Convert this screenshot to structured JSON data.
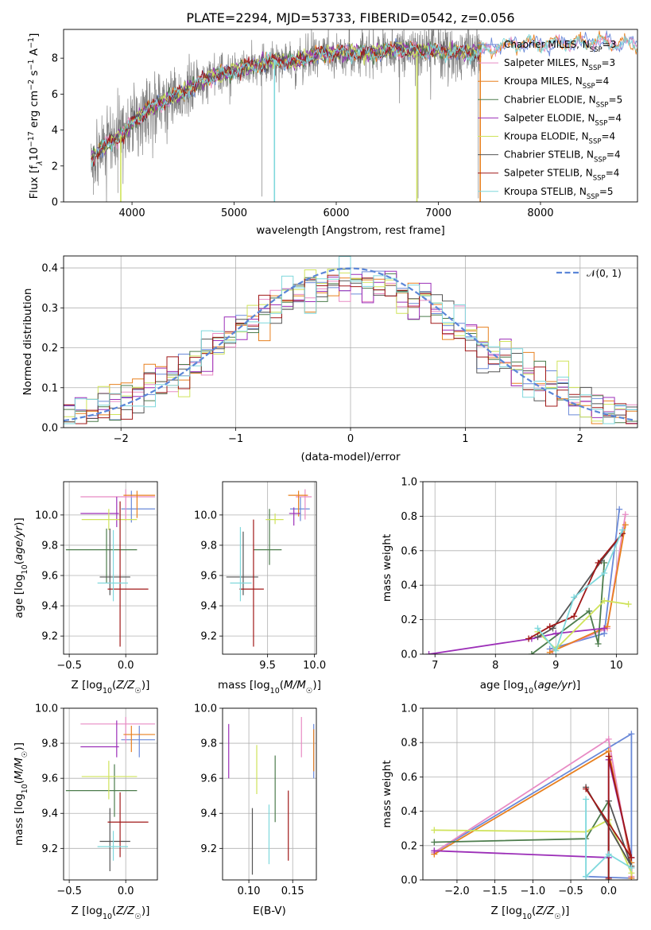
{
  "colors": {
    "Chabrier MILES": "#6a89d8",
    "Salpeter MILES": "#e88bc4",
    "Kroupa MILES": "#e8801f",
    "Chabrier ELODIE": "#4c7c4c",
    "Salpeter ELODIE": "#9c2fb8",
    "Kroupa ELODIE": "#cfe35a",
    "Chabrier STELIB": "#555555",
    "Salpeter STELIB": "#a01818",
    "Kroupa STELIB": "#7fd8dc",
    "data": "#808080",
    "normal": "#5b86d8",
    "grid": "#b0b0b0"
  },
  "chart_data": [
    {
      "type": "line",
      "title": "PLATE=2294, MJD=53733, FIBERID=0542, z=0.056",
      "xlabel": "wavelength [Angstrom, rest frame]",
      "ylabel": "Flux [f$_\\lambda$10$^{-17}$ erg cm$^{-2}$ s$^{-1}$ A$^{-1}$]",
      "ylabel_parts": {
        "a": "Flux [f",
        "b": "λ",
        "c": "10",
        "d": "−17",
        "e": " erg cm",
        "f": "−2",
        "g": " s",
        "h": "−1",
        "i": " A",
        "j": "−1",
        "k": "]"
      },
      "xlim": [
        3330,
        8950
      ],
      "ylim": [
        0,
        9.6
      ],
      "xticks": [
        "4000",
        "5000",
        "6000",
        "7000",
        "8000"
      ],
      "yticks": [
        "0",
        "2",
        "4",
        "6",
        "8"
      ],
      "legend": [
        {
          "name": "Chabrier MILES",
          "n": "3"
        },
        {
          "name": "Salpeter MILES",
          "n": "3"
        },
        {
          "name": "Kroupa MILES",
          "n": "4"
        },
        {
          "name": "Chabrier ELODIE",
          "n": "5"
        },
        {
          "name": "Salpeter ELODIE",
          "n": "4"
        },
        {
          "name": "Kroupa ELODIE",
          "n": "4"
        },
        {
          "name": "Chabrier STELIB",
          "n": "4"
        },
        {
          "name": "Salpeter STELIB",
          "n": "4"
        },
        {
          "name": "Kroupa STELIB",
          "n": "5"
        }
      ],
      "legend_n_label": "N",
      "legend_n_sub": "SSP",
      "continuum_x": [
        3600,
        3700,
        3800,
        3900,
        4000,
        4100,
        4200,
        4300,
        4400,
        4500,
        4600,
        4800,
        5000,
        5200,
        5400,
        5600,
        5800,
        6000,
        6200,
        6400,
        6600,
        6800,
        7000,
        7200,
        7400,
        7600,
        7800,
        8000,
        8200,
        8400,
        8600,
        8800
      ],
      "continuum_y": [
        2.4,
        3.0,
        3.4,
        3.7,
        4.4,
        4.9,
        5.3,
        5.5,
        5.9,
        6.1,
        6.4,
        7.0,
        7.3,
        7.6,
        7.9,
        7.8,
        8.2,
        8.3,
        8.3,
        8.3,
        8.5,
        8.4,
        8.4,
        8.3,
        8.3,
        8.7,
        8.8,
        8.8,
        8.8,
        8.9,
        8.9,
        8.8
      ]
    },
    {
      "type": "bar",
      "title": "",
      "xlabel": "(data-model)/error",
      "ylabel": "Normed distribution",
      "xlim": [
        -2.5,
        2.5
      ],
      "ylim": [
        0,
        0.43
      ],
      "xticks": [
        "−2",
        "−1",
        "0",
        "1",
        "2"
      ],
      "yticks": [
        "0.0",
        "0.1",
        "0.2",
        "0.3",
        "0.4"
      ],
      "legend_label": "𝒩(0, 1)",
      "bin_width": 0.1,
      "reference": "normal"
    },
    {
      "type": "scatter",
      "xlabel": "Z [log10(Z/Z☉)]",
      "ylabel": "age  [log10(age/yr)]",
      "xlim": [
        -0.55,
        0.28
      ],
      "ylim": [
        9.08,
        10.22
      ],
      "xticks": [
        "−0.5",
        "0.0"
      ],
      "yticks": [
        "9.2",
        "9.4",
        "9.6",
        "9.8",
        "10.0"
      ],
      "points": [
        {
          "s": "Chabrier MILES",
          "x": 0.05,
          "y": 10.04,
          "xe": [
            -0.04,
            0.26
          ],
          "ye": [
            9.95,
            10.16
          ]
        },
        {
          "s": "Salpeter MILES",
          "x": 0.0,
          "y": 10.12,
          "xe": [
            -0.4,
            0.26
          ],
          "ye": [
            9.96,
            10.17
          ]
        },
        {
          "s": "Kroupa MILES",
          "x": 0.1,
          "y": 10.13,
          "xe": [
            -0.02,
            0.26
          ],
          "ye": [
            9.98,
            10.16
          ]
        },
        {
          "s": "Chabrier ELODIE",
          "x": -0.17,
          "y": 9.77,
          "xe": [
            -0.53,
            0.1
          ],
          "ye": [
            9.55,
            9.91
          ]
        },
        {
          "s": "Salpeter ELODIE",
          "x": -0.08,
          "y": 10.01,
          "xe": [
            -0.4,
            -0.06
          ],
          "ye": [
            9.92,
            10.12
          ]
        },
        {
          "s": "Kroupa ELODIE",
          "x": -0.15,
          "y": 9.97,
          "xe": [
            -0.39,
            0.1
          ],
          "ye": [
            9.9,
            10.04
          ]
        },
        {
          "s": "Chabrier STELIB",
          "x": -0.14,
          "y": 9.59,
          "xe": [
            -0.23,
            0.04
          ],
          "ye": [
            9.47,
            9.91
          ]
        },
        {
          "s": "Salpeter STELIB",
          "x": -0.05,
          "y": 9.51,
          "xe": [
            -0.16,
            0.2
          ],
          "ye": [
            9.13,
            10.09
          ]
        },
        {
          "s": "Kroupa STELIB",
          "x": -0.11,
          "y": 9.55,
          "xe": [
            -0.25,
            0.02
          ],
          "ye": [
            9.43,
            9.9
          ]
        }
      ]
    },
    {
      "type": "scatter",
      "xlabel": "mass [log10(M/M☉)]",
      "ylabel": "",
      "xlim": [
        9.02,
        10.02
      ],
      "ylim": [
        9.08,
        10.22
      ],
      "xticks": [
        "9.5",
        "10.0"
      ],
      "yticks": [
        "9.2",
        "9.4",
        "9.6",
        "9.8",
        "10.0"
      ],
      "points": [
        {
          "s": "Chabrier MILES",
          "x": 9.85,
          "y": 10.04,
          "xe": [
            9.74,
            9.95
          ],
          "ye": [
            9.96,
            10.12
          ]
        },
        {
          "s": "Salpeter MILES",
          "x": 9.9,
          "y": 10.12,
          "xe": [
            9.8,
            9.97
          ],
          "ye": [
            9.97,
            10.17
          ]
        },
        {
          "s": "Kroupa MILES",
          "x": 9.83,
          "y": 10.13,
          "xe": [
            9.72,
            9.93
          ],
          "ye": [
            9.99,
            10.16
          ]
        },
        {
          "s": "Chabrier ELODIE",
          "x": 9.52,
          "y": 9.77,
          "xe": [
            9.35,
            9.65
          ],
          "ye": [
            9.67,
            10.04
          ]
        },
        {
          "s": "Salpeter ELODIE",
          "x": 9.78,
          "y": 10.01,
          "xe": [
            9.73,
            9.85
          ],
          "ye": [
            9.93,
            10.05
          ]
        },
        {
          "s": "Kroupa ELODIE",
          "x": 9.58,
          "y": 9.97,
          "xe": [
            9.48,
            9.67
          ],
          "ye": [
            9.94,
            10.01
          ]
        },
        {
          "s": "Chabrier STELIB",
          "x": 9.24,
          "y": 9.59,
          "xe": [
            9.06,
            9.4
          ],
          "ye": [
            9.47,
            9.89
          ]
        },
        {
          "s": "Salpeter STELIB",
          "x": 9.35,
          "y": 9.51,
          "xe": [
            9.2,
            9.46
          ],
          "ye": [
            9.13,
            9.97
          ]
        },
        {
          "s": "Kroupa STELIB",
          "x": 9.21,
          "y": 9.55,
          "xe": [
            9.1,
            9.33
          ],
          "ye": [
            9.43,
            9.92
          ]
        }
      ]
    },
    {
      "type": "line",
      "xlabel": "age  [log10(age/yr)]",
      "ylabel": "mass weight",
      "xlim": [
        6.8,
        10.35
      ],
      "ylim": [
        0,
        1.0
      ],
      "xticks": [
        "7",
        "8",
        "9",
        "10"
      ],
      "yticks": [
        "0.0",
        "0.2",
        "0.4",
        "0.6",
        "0.8",
        "1.0"
      ],
      "series": [
        {
          "s": "Chabrier MILES",
          "x": [
            8.9,
            9.8,
            10.05
          ],
          "y": [
            0.03,
            0.12,
            0.84
          ]
        },
        {
          "s": "Salpeter MILES",
          "x": [
            8.95,
            9.85,
            10.15
          ],
          "y": [
            0.02,
            0.15,
            0.81
          ]
        },
        {
          "s": "Kroupa MILES",
          "x": [
            8.9,
            9.85,
            10.15
          ],
          "y": [
            0.01,
            0.16,
            0.75
          ]
        },
        {
          "s": "Chabrier ELODIE",
          "x": [
            8.6,
            9.55,
            9.7,
            9.8
          ],
          "y": [
            0.0,
            0.25,
            0.06,
            0.53
          ]
        },
        {
          "s": "Salpeter ELODIE",
          "x": [
            6.9,
            8.6,
            9.0,
            9.8
          ],
          "y": [
            0.0,
            0.09,
            0.12,
            0.15
          ]
        },
        {
          "s": "Kroupa ELODIE",
          "x": [
            8.7,
            9.0,
            9.8,
            10.2
          ],
          "y": [
            0.13,
            0.03,
            0.31,
            0.29
          ]
        },
        {
          "s": "Chabrier STELIB",
          "x": [
            8.7,
            8.95,
            9.75,
            10.1
          ],
          "y": [
            0.1,
            0.15,
            0.54,
            0.7
          ]
        },
        {
          "s": "Salpeter STELIB",
          "x": [
            8.55,
            8.9,
            9.3,
            9.7,
            10.1
          ],
          "y": [
            0.09,
            0.16,
            0.22,
            0.53,
            0.7
          ]
        },
        {
          "s": "Kroupa STELIB",
          "x": [
            8.7,
            9.0,
            9.3,
            9.8,
            10.1
          ],
          "y": [
            0.15,
            0.02,
            0.33,
            0.47,
            0.72
          ]
        }
      ]
    },
    {
      "type": "scatter",
      "xlabel": "Z [log10(Z/Z☉)]",
      "ylabel": "mass [log10(M/M☉)]",
      "xlim": [
        -0.55,
        0.28
      ],
      "ylim": [
        9.02,
        10.0
      ],
      "xticks": [
        "−0.5",
        "0.0"
      ],
      "yticks": [
        "9.2",
        "9.4",
        "9.6",
        "9.8",
        "10.0"
      ],
      "points": [
        {
          "s": "Chabrier MILES",
          "x": 0.12,
          "y": 9.82,
          "xe": [
            -0.04,
            0.26
          ],
          "ye": [
            9.72,
            9.9
          ]
        },
        {
          "s": "Salpeter MILES",
          "x": 0.0,
          "y": 9.91,
          "xe": [
            -0.4,
            0.26
          ],
          "ye": [
            9.8,
            9.95
          ]
        },
        {
          "s": "Kroupa MILES",
          "x": 0.05,
          "y": 9.85,
          "xe": [
            -0.02,
            0.26
          ],
          "ye": [
            9.75,
            9.9
          ]
        },
        {
          "s": "Chabrier ELODIE",
          "x": -0.1,
          "y": 9.53,
          "xe": [
            -0.53,
            0.1
          ],
          "ye": [
            9.38,
            9.68
          ]
        },
        {
          "s": "Salpeter ELODIE",
          "x": -0.08,
          "y": 9.78,
          "xe": [
            -0.4,
            -0.06
          ],
          "ye": [
            9.72,
            9.93
          ]
        },
        {
          "s": "Kroupa ELODIE",
          "x": -0.15,
          "y": 9.61,
          "xe": [
            -0.39,
            0.1
          ],
          "ye": [
            9.48,
            9.7
          ]
        },
        {
          "s": "Chabrier STELIB",
          "x": -0.14,
          "y": 9.24,
          "xe": [
            -0.23,
            0.04
          ],
          "ye": [
            9.07,
            9.43
          ]
        },
        {
          "s": "Salpeter STELIB",
          "x": -0.05,
          "y": 9.35,
          "xe": [
            -0.16,
            0.2
          ],
          "ye": [
            9.15,
            9.52
          ]
        },
        {
          "s": "Kroupa STELIB",
          "x": -0.11,
          "y": 9.21,
          "xe": [
            -0.25,
            0.02
          ],
          "ye": [
            9.13,
            9.3
          ]
        }
      ]
    },
    {
      "type": "scatter",
      "xlabel": "E(B-V)",
      "ylabel": "",
      "xlim": [
        0.07,
        0.177
      ],
      "ylim": [
        9.02,
        10.0
      ],
      "xticks": [
        "0.10",
        "0.15"
      ],
      "yticks": [
        "9.2",
        "9.4",
        "9.6",
        "9.8",
        "10.0"
      ],
      "points": [
        {
          "s": "Chabrier MILES",
          "x": 0.174,
          "y": 9.76,
          "ye": [
            9.6,
            9.91
          ]
        },
        {
          "s": "Salpeter MILES",
          "x": 0.16,
          "y": 9.83,
          "ye": [
            9.72,
            9.95
          ]
        },
        {
          "s": "Kroupa MILES",
          "x": 0.174,
          "y": 9.75,
          "ye": [
            9.64,
            9.88
          ]
        },
        {
          "s": "Chabrier ELODIE",
          "x": 0.13,
          "y": 9.54,
          "ye": [
            9.35,
            9.73
          ]
        },
        {
          "s": "Salpeter ELODIE",
          "x": 0.077,
          "y": 9.75,
          "ye": [
            9.6,
            9.91
          ]
        },
        {
          "s": "Kroupa ELODIE",
          "x": 0.109,
          "y": 9.65,
          "ye": [
            9.51,
            9.79
          ]
        },
        {
          "s": "Chabrier STELIB",
          "x": 0.104,
          "y": 9.24,
          "ye": [
            9.05,
            9.43
          ]
        },
        {
          "s": "Salpeter STELIB",
          "x": 0.145,
          "y": 9.33,
          "ye": [
            9.13,
            9.53
          ]
        },
        {
          "s": "Kroupa STELIB",
          "x": 0.123,
          "y": 9.28,
          "ye": [
            9.11,
            9.45
          ]
        }
      ]
    },
    {
      "type": "line",
      "xlabel": "Z [log10(Z/Z☉)]",
      "ylabel": "mass weight",
      "xlim": [
        -2.45,
        0.38
      ],
      "ylim": [
        0,
        1.0
      ],
      "xticks": [
        "−2.0",
        "−1.5",
        "−1.0",
        "−0.5",
        "0.0"
      ],
      "yticks": [
        "0.0",
        "0.2",
        "0.4",
        "0.6",
        "0.8",
        "1.0"
      ],
      "series": [
        {
          "s": "Chabrier MILES",
          "x": [
            -2.3,
            0.3,
            0.3,
            -0.3
          ],
          "y": [
            0.16,
            0.85,
            0.01,
            0.02
          ]
        },
        {
          "s": "Salpeter MILES",
          "x": [
            -2.3,
            0.0,
            0.3,
            0.3
          ],
          "y": [
            0.16,
            0.82,
            0.07,
            0.02
          ]
        },
        {
          "s": "Kroupa MILES",
          "x": [
            -2.3,
            0.0,
            0.3,
            0.3
          ],
          "y": [
            0.15,
            0.75,
            0.1,
            0.01
          ]
        },
        {
          "s": "Chabrier ELODIE",
          "x": [
            -2.3,
            -0.3,
            0.0,
            0.0
          ],
          "y": [
            0.22,
            0.24,
            0.46,
            0.0
          ]
        },
        {
          "s": "Salpeter ELODIE",
          "x": [
            -2.3,
            0.0,
            0.0,
            0.3
          ],
          "y": [
            0.17,
            0.13,
            0.7,
            0.13
          ]
        },
        {
          "s": "Kroupa ELODIE",
          "x": [
            -2.3,
            -0.3,
            0.0,
            0.3
          ],
          "y": [
            0.29,
            0.28,
            0.35,
            0.04
          ]
        },
        {
          "s": "Chabrier STELIB",
          "x": [
            -0.3,
            0.3,
            0.0,
            0.0
          ],
          "y": [
            0.54,
            0.08,
            0.46,
            0.0
          ]
        },
        {
          "s": "Salpeter STELIB",
          "x": [
            -0.3,
            0.3,
            0.0,
            0.0
          ],
          "y": [
            0.53,
            0.13,
            0.72,
            0.01
          ]
        },
        {
          "s": "Kroupa STELIB",
          "x": [
            -0.3,
            -0.3,
            0.0,
            0.3
          ],
          "y": [
            0.47,
            0.02,
            0.15,
            0.07
          ]
        }
      ]
    }
  ]
}
